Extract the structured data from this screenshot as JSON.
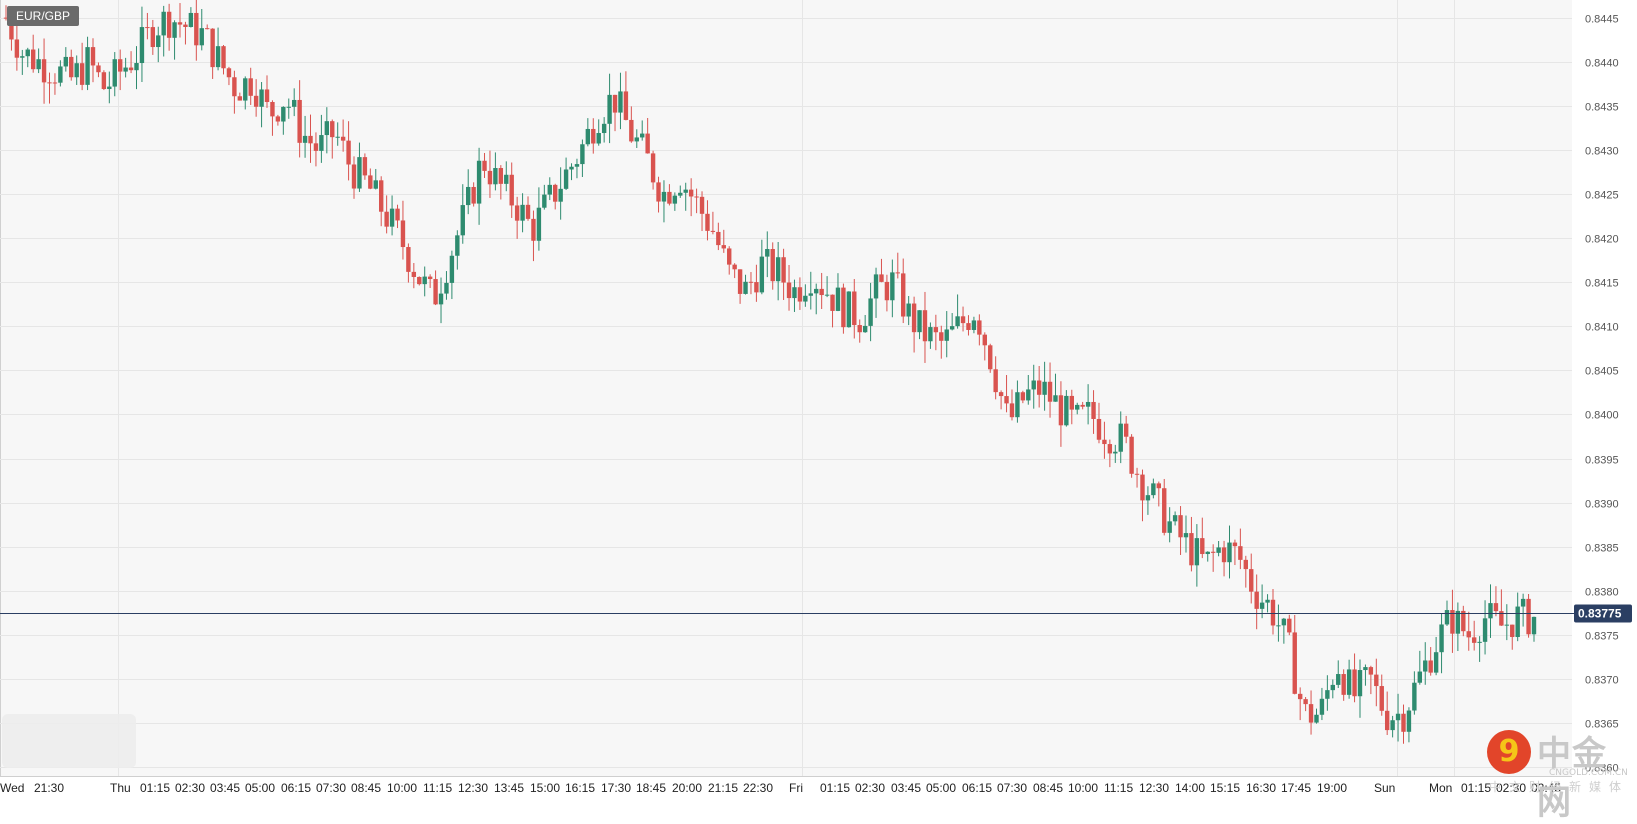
{
  "symbol": "EUR/GBP",
  "current_price": "0.83775",
  "colors": {
    "up": "#2e8b6f",
    "down": "#d9534f",
    "grid": "#e6e6e6",
    "price_line": "#2b3f63",
    "background": "#f7f7f7"
  },
  "watermark": {
    "logo_glyph": "9",
    "cn_name": "中金网",
    "en_name": "CNGOLD.COM.CN",
    "sub": "中文财经新媒体"
  },
  "chart_data": {
    "type": "candlestick",
    "title": "EUR/GBP",
    "ylim": [
      0.8359,
      0.8447
    ],
    "y_ticks": [
      "0.8445",
      "0.8440",
      "0.8435",
      "0.8430",
      "0.8425",
      "0.8420",
      "0.8415",
      "0.8410",
      "0.8405",
      "0.8400",
      "0.8395",
      "0.8390",
      "0.8385",
      "0.8380",
      "0.8375",
      "0.8370",
      "0.8365",
      "0.8360"
    ],
    "x_labels": [
      "Wed",
      "21:30",
      "Thu",
      "01:15",
      "02:30",
      "03:45",
      "05:00",
      "06:15",
      "07:30",
      "08:45",
      "10:00",
      "11:15",
      "12:30",
      "13:45",
      "15:00",
      "16:15",
      "17:30",
      "18:45",
      "20:00",
      "21:15",
      "22:30",
      "Fri",
      "01:15",
      "02:30",
      "03:45",
      "05:00",
      "06:15",
      "07:30",
      "08:45",
      "10:00",
      "11:15",
      "12:30",
      "14:00",
      "15:15",
      "16:30",
      "17:45",
      "19:00",
      "Sun",
      "Mon",
      "01:15",
      "02:30",
      "03:45"
    ],
    "last_value": 0.83775,
    "grid": true,
    "price_path": [
      0.8445,
      0.8441,
      0.844,
      0.8439,
      0.8438,
      0.844,
      0.8437,
      0.8439,
      0.8441,
      0.8444,
      0.8445,
      0.8444,
      0.8443,
      0.844,
      0.8437,
      0.8438,
      0.8434,
      0.8436,
      0.8432,
      0.843,
      0.8432,
      0.8428,
      0.8426,
      0.8423,
      0.842,
      0.8416,
      0.8413,
      0.8418,
      0.8423,
      0.8429,
      0.8426,
      0.8424,
      0.8421,
      0.8424,
      0.8427,
      0.843,
      0.8434,
      0.8436,
      0.8432,
      0.8429,
      0.8425,
      0.8427,
      0.8424,
      0.8421,
      0.8416,
      0.8414,
      0.8417,
      0.8416,
      0.8414,
      0.8416,
      0.8414,
      0.8412,
      0.8411,
      0.8414,
      0.8415,
      0.8411,
      0.8409,
      0.8408,
      0.841,
      0.8412,
      0.8406,
      0.8399,
      0.8402,
      0.8403,
      0.8401,
      0.8399,
      0.84,
      0.8398,
      0.8397,
      0.8393,
      0.839,
      0.8387,
      0.8385,
      0.8383,
      0.8385,
      0.8384,
      0.838,
      0.8378,
      0.8374,
      0.8366,
      0.8366,
      0.8372,
      0.8368,
      0.837,
      0.8366,
      0.8366,
      0.837,
      0.8374,
      0.8377,
      0.8375,
      0.8377,
      0.8376,
      0.8377,
      0.8377
    ]
  }
}
